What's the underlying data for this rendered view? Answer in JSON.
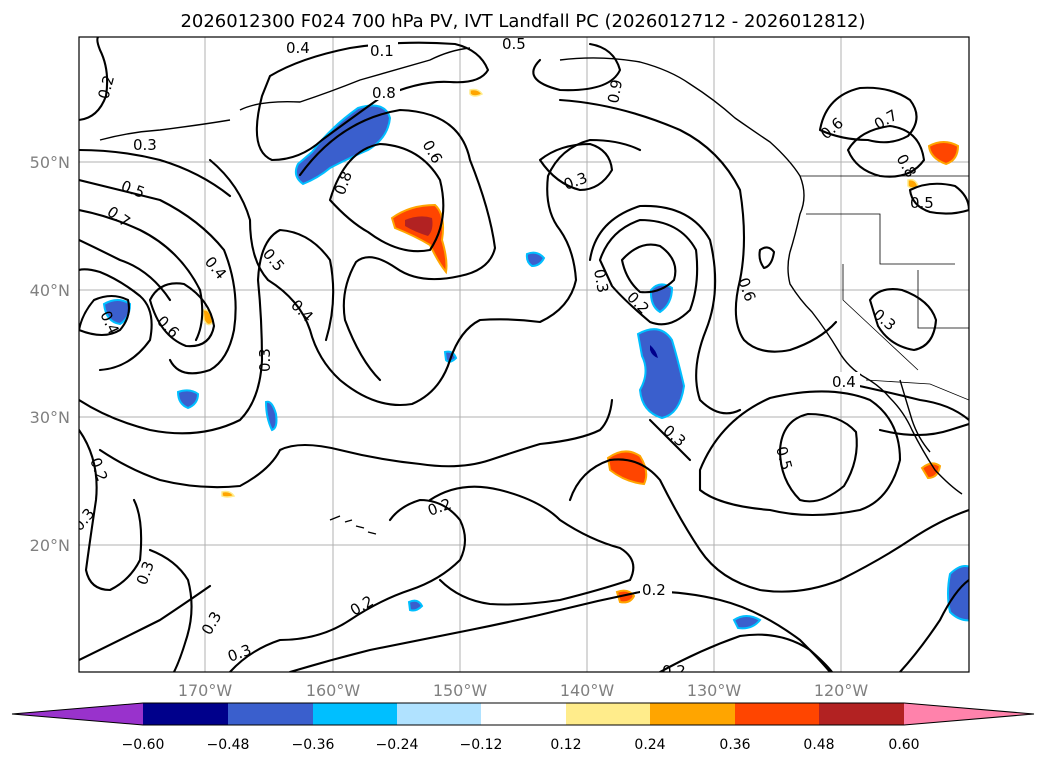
{
  "title": "2026012300 F024 700 hPa PV, IVT Landfall PC (2026012712 - 2026012812)",
  "map": {
    "lon_labels": [
      "170°W",
      "160°W",
      "150°W",
      "140°W",
      "130°W",
      "120°W"
    ],
    "lat_labels": [
      "50°N",
      "40°N",
      "30°N",
      "20°N"
    ],
    "contour_labels": [
      "0.4",
      "0.1",
      "0.5",
      "0.2",
      "0.3",
      "0.8",
      "0.6",
      "0.9",
      "0.7",
      "0.8",
      "0.6",
      "0.3",
      "0.5",
      "0.7",
      "0.8",
      "0.5",
      "0.4",
      "0.5",
      "0.3",
      "0.2",
      "0.6",
      "0.4",
      "0.6",
      "0.4",
      "0.3",
      "0.3",
      "0.4",
      "0.5",
      "0.2",
      "0.3",
      "0.3",
      "0.2",
      "0.2",
      "0.3",
      "0.2",
      "0.3",
      "0.2",
      "0.3"
    ],
    "features": [
      "coastlines",
      "country-borders",
      "state-borders",
      "gridlines"
    ]
  },
  "colorbar": {
    "ticks": [
      "−0.60",
      "−0.48",
      "−0.36",
      "−0.24",
      "−0.12",
      "0.12",
      "0.24",
      "0.36",
      "0.48",
      "0.60"
    ],
    "colors": [
      "#9932cc",
      "#00008b",
      "#3a5fcd",
      "#00bfff",
      "#b0e2ff",
      "#ffffff",
      "#ffec8b",
      "#ffa500",
      "#ff4500",
      "#b22222",
      "#ff82ab"
    ]
  },
  "colors": {
    "neg_strong": "#3a5fcd",
    "neg_mid": "#00bfff",
    "neg_dark": "#00008b",
    "pos_mid": "#ffa500",
    "pos_strong": "#ff4500",
    "pos_dark": "#b22222"
  }
}
